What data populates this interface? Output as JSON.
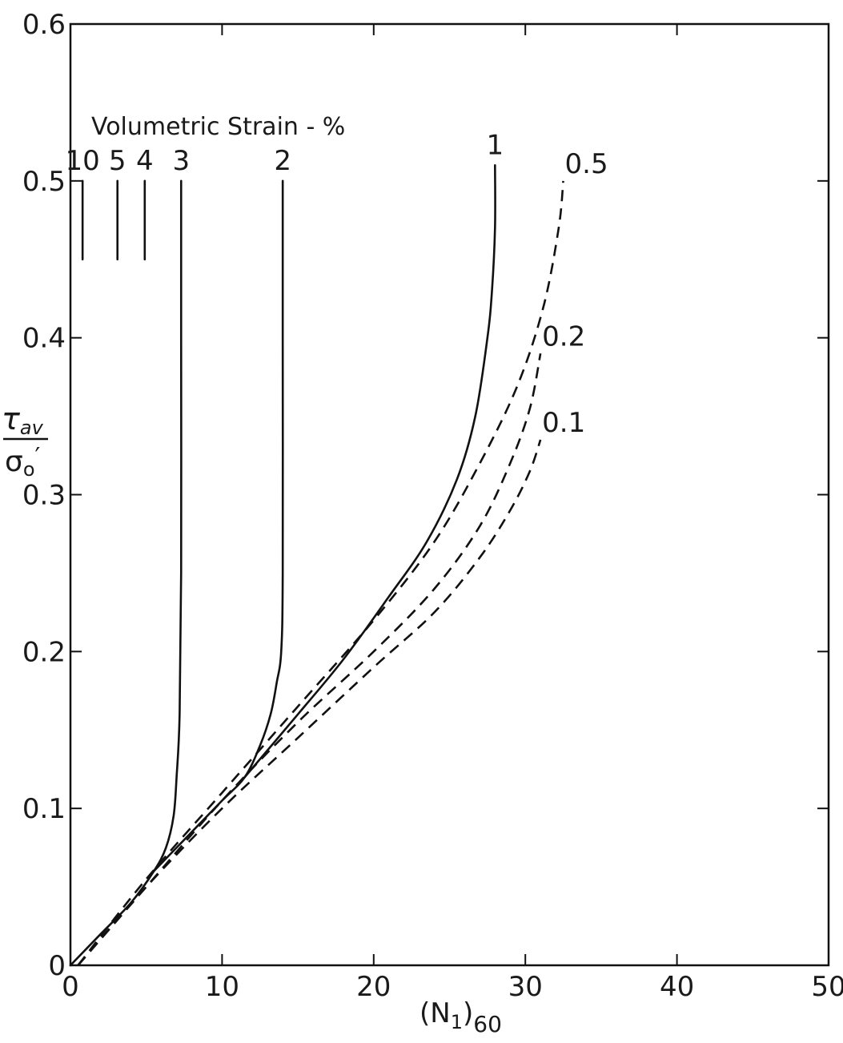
{
  "chart_data": {
    "type": "line",
    "title": "",
    "xlabel_main": "(N",
    "xlabel_sub1": "1",
    "xlabel_close": ")",
    "xlabel_sub2": "60",
    "ylabel_num_symbol": "τ",
    "ylabel_num_sub": "av",
    "ylabel_den_symbol": "σ",
    "ylabel_den_sub": "o",
    "ylabel_den_prime": "′",
    "xlim": [
      0,
      50
    ],
    "ylim": [
      0,
      0.6
    ],
    "xticks": [
      0,
      10,
      20,
      30,
      40,
      50
    ],
    "xtick_labels": [
      "0",
      "10",
      "20",
      "30",
      "40",
      "50"
    ],
    "yticks": [
      0,
      0.1,
      0.2,
      0.3,
      0.4,
      0.5,
      0.6
    ],
    "ytick_labels": [
      "0",
      "0.1",
      "0.2",
      "0.3",
      "0.4",
      "0.5",
      "0.6"
    ],
    "grid": false,
    "legend_title": "Volumetric Strain - %",
    "series": [
      {
        "name": "10",
        "style": "solid",
        "x": [
          0.8,
          0.8
        ],
        "y": [
          0.45,
          0.5
        ]
      },
      {
        "name": "5",
        "style": "solid",
        "x": [
          3.1,
          3.1
        ],
        "y": [
          0.45,
          0.5
        ]
      },
      {
        "name": "4",
        "style": "solid",
        "x": [
          4.9,
          4.9
        ],
        "y": [
          0.45,
          0.5
        ]
      },
      {
        "name": "3",
        "style": "solid",
        "x": [
          0,
          2,
          4,
          5.5,
          6.3,
          6.8,
          7.0,
          7.2,
          7.3,
          7.3,
          7.3
        ],
        "y": [
          0,
          0.02,
          0.04,
          0.06,
          0.075,
          0.095,
          0.12,
          0.16,
          0.25,
          0.4,
          0.5
        ]
      },
      {
        "name": "2",
        "style": "solid",
        "x": [
          5.5,
          8,
          10,
          11.5,
          12.5,
          13.2,
          13.6,
          13.9,
          14.0,
          14.0,
          14.0
        ],
        "y": [
          0.06,
          0.085,
          0.105,
          0.12,
          0.14,
          0.16,
          0.18,
          0.2,
          0.25,
          0.4,
          0.5
        ]
      },
      {
        "name": "1",
        "style": "solid",
        "x": [
          11.5,
          15,
          18,
          21,
          23.5,
          25.5,
          26.7,
          27.5,
          27.8,
          28.0,
          28.0
        ],
        "y": [
          0.12,
          0.16,
          0.195,
          0.235,
          0.27,
          0.31,
          0.35,
          0.4,
          0.43,
          0.47,
          0.51
        ]
      },
      {
        "name": "0.5",
        "style": "dashed",
        "x": [
          0.5,
          5,
          10,
          15,
          20,
          24,
          27,
          29.5,
          31.2,
          32.2,
          32.5
        ],
        "y": [
          0,
          0.055,
          0.11,
          0.165,
          0.22,
          0.27,
          0.32,
          0.37,
          0.42,
          0.47,
          0.5
        ]
      },
      {
        "name": "0.2",
        "style": "dashed",
        "x": [
          0.5,
          5,
          10,
          15,
          20,
          24,
          27,
          29,
          30.3,
          31.0
        ],
        "y": [
          0,
          0.05,
          0.105,
          0.155,
          0.2,
          0.24,
          0.28,
          0.32,
          0.355,
          0.39
        ]
      },
      {
        "name": "0.1",
        "style": "dashed",
        "x": [
          0.5,
          5,
          10,
          15,
          20,
          24,
          27,
          29,
          30.3,
          31.0
        ],
        "y": [
          0,
          0.05,
          0.1,
          0.145,
          0.19,
          0.225,
          0.26,
          0.29,
          0.315,
          0.335
        ]
      }
    ]
  }
}
